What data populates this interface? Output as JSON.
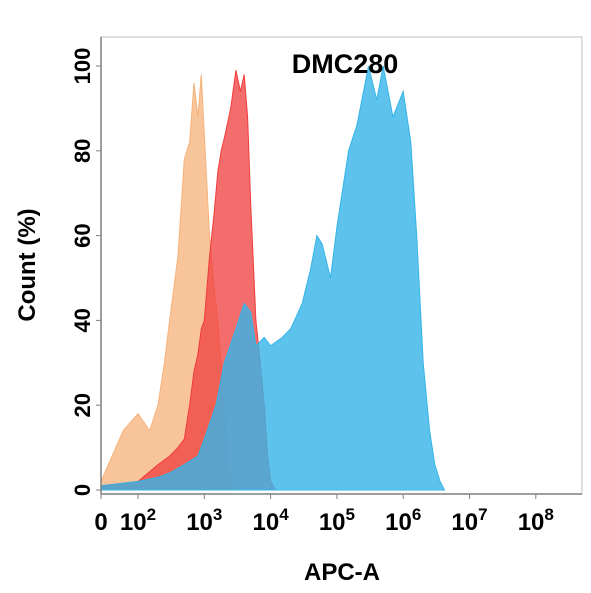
{
  "chart_data": {
    "type": "area",
    "title": "DMC280",
    "xlabel": "APC-A",
    "ylabel": "Count  (%)",
    "x_scale": "biexponential",
    "y_range": [
      0,
      100
    ],
    "y_ticks": [
      "0",
      "20",
      "40",
      "60",
      "80",
      "100"
    ],
    "x_ticks": [
      {
        "value": 0,
        "base": "0",
        "exp": ""
      },
      {
        "value": 100,
        "base": "10",
        "exp": "2"
      },
      {
        "value": 1000,
        "base": "10",
        "exp": "3"
      },
      {
        "value": 10000,
        "base": "10",
        "exp": "4"
      },
      {
        "value": 100000,
        "base": "10",
        "exp": "5"
      },
      {
        "value": 1000000,
        "base": "10",
        "exp": "6"
      },
      {
        "value": 10000000,
        "base": "10",
        "exp": "7"
      },
      {
        "value": 100000000,
        "base": "10",
        "exp": "8"
      }
    ],
    "series": [
      {
        "color": "#f5b27a",
        "points": [
          [
            0,
            2
          ],
          [
            30,
            8
          ],
          [
            60,
            14
          ],
          [
            100,
            18
          ],
          [
            150,
            14
          ],
          [
            200,
            20
          ],
          [
            250,
            30
          ],
          [
            300,
            40
          ],
          [
            400,
            55
          ],
          [
            500,
            78
          ],
          [
            600,
            82
          ],
          [
            700,
            96
          ],
          [
            800,
            88
          ],
          [
            900,
            98
          ],
          [
            1000,
            84
          ],
          [
            1200,
            60
          ],
          [
            1400,
            48
          ],
          [
            1600,
            40
          ],
          [
            1800,
            30
          ],
          [
            2000,
            18
          ],
          [
            2200,
            8
          ],
          [
            2500,
            2
          ],
          [
            3000,
            0
          ]
        ]
      },
      {
        "color": "#f03c3c",
        "points": [
          [
            0,
            1
          ],
          [
            100,
            2
          ],
          [
            200,
            6
          ],
          [
            300,
            8
          ],
          [
            400,
            10
          ],
          [
            500,
            12
          ],
          [
            600,
            20
          ],
          [
            700,
            28
          ],
          [
            800,
            32
          ],
          [
            900,
            38
          ],
          [
            1000,
            40
          ],
          [
            1200,
            55
          ],
          [
            1400,
            65
          ],
          [
            1600,
            75
          ],
          [
            1800,
            80
          ],
          [
            2000,
            83
          ],
          [
            2500,
            90
          ],
          [
            3000,
            99
          ],
          [
            3500,
            94
          ],
          [
            4000,
            98
          ],
          [
            4500,
            88
          ],
          [
            5000,
            68
          ],
          [
            6000,
            40
          ],
          [
            7000,
            30
          ],
          [
            8000,
            20
          ],
          [
            9000,
            8
          ],
          [
            10000,
            2
          ],
          [
            12000,
            0
          ]
        ]
      },
      {
        "color": "#34b4e8",
        "points": [
          [
            0,
            1
          ],
          [
            100,
            2
          ],
          [
            200,
            3
          ],
          [
            300,
            4
          ],
          [
            500,
            6
          ],
          [
            800,
            8
          ],
          [
            1000,
            12
          ],
          [
            1500,
            20
          ],
          [
            2000,
            30
          ],
          [
            3000,
            38
          ],
          [
            4000,
            44
          ],
          [
            5000,
            42
          ],
          [
            6000,
            34
          ],
          [
            8000,
            36
          ],
          [
            10000,
            34
          ],
          [
            15000,
            36
          ],
          [
            20000,
            38
          ],
          [
            30000,
            44
          ],
          [
            40000,
            52
          ],
          [
            50000,
            60
          ],
          [
            60000,
            58
          ],
          [
            80000,
            50
          ],
          [
            100000,
            62
          ],
          [
            150000,
            80
          ],
          [
            200000,
            86
          ],
          [
            300000,
            100
          ],
          [
            400000,
            92
          ],
          [
            500000,
            100
          ],
          [
            700000,
            88
          ],
          [
            1000000,
            94
          ],
          [
            1300000,
            82
          ],
          [
            1600000,
            60
          ],
          [
            2000000,
            30
          ],
          [
            2500000,
            14
          ],
          [
            3000000,
            6
          ],
          [
            3600000,
            2
          ],
          [
            4200000,
            0
          ]
        ]
      }
    ]
  }
}
